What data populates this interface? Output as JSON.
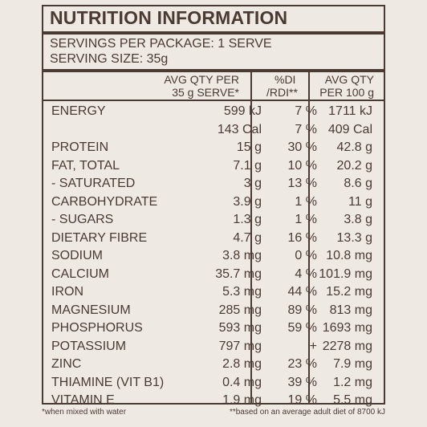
{
  "title": "NUTRITION INFORMATION",
  "servings_per_package": "SERVINGS PER PACKAGE: 1 SERVE",
  "serving_size": "SERVING SIZE: 35g",
  "headers": {
    "avg_qty_line1": "AVG QTY PER",
    "avg_qty_line2": "35 g SERVE*",
    "di_line1": "%DI",
    "di_line2": "/RDI**",
    "per100_line1": "AVG QTY",
    "per100_line2": "PER 100 g"
  },
  "rows": [
    {
      "name": "ENERGY",
      "qty": "599 kJ",
      "di": "7 %",
      "per100": "1711 kJ"
    },
    {
      "name": "",
      "qty": "143 Cal",
      "di": "7 %",
      "per100": "409 Cal"
    },
    {
      "name": "PROTEIN",
      "qty": "15 g",
      "di": "30 %",
      "per100": "42.8 g"
    },
    {
      "name": "FAT, TOTAL",
      "qty": "7.1 g",
      "di": "10 %",
      "per100": "20.2 g"
    },
    {
      "name": "- SATURATED",
      "qty": "3 g",
      "di": "13 %",
      "per100": "8.6 g"
    },
    {
      "name": "CARBOHYDRATE",
      "qty": "3.9 g",
      "di": "1 %",
      "per100": "11 g"
    },
    {
      "name": "- SUGARS",
      "qty": "1.3 g",
      "di": "1 %",
      "per100": "3.8 g"
    },
    {
      "name": "DIETARY FIBRE",
      "qty": "4.7 g",
      "di": "16 %",
      "per100": "13.3 g"
    },
    {
      "name": "SODIUM",
      "qty": "3.8 mg",
      "di": "0 %",
      "per100": "10.8 mg"
    },
    {
      "name": "CALCIUM",
      "qty": "35.7 mg",
      "di": "4 %",
      "per100": "101.9 mg"
    },
    {
      "name": "IRON",
      "qty": "5.3 mg",
      "di": "44 %",
      "per100": "15.2 mg"
    },
    {
      "name": "MAGNESIUM",
      "qty": "285 mg",
      "di": "89 %",
      "per100": "813 mg"
    },
    {
      "name": "PHOSPHORUS",
      "qty": "593 mg",
      "di": "59 %",
      "per100": "1693 mg"
    },
    {
      "name": "POTASSIUM",
      "qty": "797 mg",
      "di": "+",
      "per100": "2278 mg"
    },
    {
      "name": "ZINC",
      "qty": "2.8 mg",
      "di": "23 %",
      "per100": "7.9 mg"
    },
    {
      "name": "THIAMINE (VIT B1)",
      "qty": "0.4 mg",
      "di": "39 %",
      "per100": "1.2 mg"
    },
    {
      "name": "VITAMIN E",
      "qty": "1.9 mg",
      "di": "19 %",
      "per100": "5.5 mg"
    }
  ],
  "footnotes": {
    "left": "*when mixed with water",
    "right": "**based on an average adult diet of 8700 kJ"
  }
}
